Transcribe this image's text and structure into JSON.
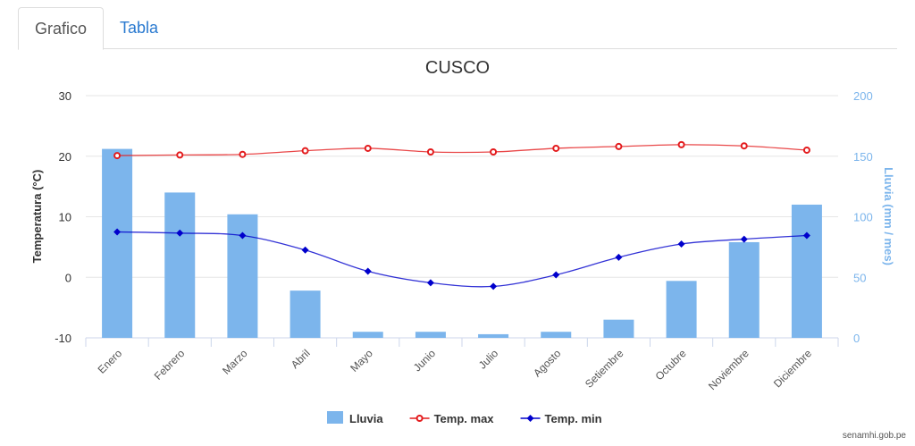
{
  "tabs": [
    {
      "label": "Grafico",
      "active": true
    },
    {
      "label": "Tabla",
      "active": false
    }
  ],
  "credit": "senamhi.gob.pe",
  "chart_data": {
    "type": "bar+line",
    "title": "CUSCO",
    "categories": [
      "Enero",
      "Febrero",
      "Marzo",
      "Abril",
      "Mayo",
      "Junio",
      "Julio",
      "Agosto",
      "Setiembre",
      "Octubre",
      "Noviembre",
      "Diciembre"
    ],
    "y_left": {
      "label": "Temperatura (°C)",
      "range": [
        -10,
        30
      ],
      "ticks": [
        -10,
        0,
        10,
        20,
        30
      ]
    },
    "y_right": {
      "label": "Lluvia (mm / mes)",
      "range": [
        0,
        200
      ],
      "ticks": [
        0,
        50,
        100,
        150,
        200
      ],
      "color": "#7cb5ec"
    },
    "grid": true,
    "legend_position": "bottom",
    "series": [
      {
        "name": "Lluvia",
        "type": "bar",
        "axis": "right",
        "color": "#7cb5ec",
        "values": [
          156,
          120,
          102,
          39,
          5,
          5,
          3,
          5,
          15,
          47,
          79,
          110
        ]
      },
      {
        "name": "Temp. max",
        "type": "line",
        "axis": "left",
        "color": "#e31a1c",
        "marker": "circle",
        "values": [
          20.1,
          20.2,
          20.3,
          20.9,
          21.3,
          20.7,
          20.7,
          21.3,
          21.6,
          21.9,
          21.7,
          21.0
        ]
      },
      {
        "name": "Temp. min",
        "type": "line",
        "axis": "left",
        "color": "#0000cc",
        "marker": "diamond",
        "values": [
          7.5,
          7.3,
          6.9,
          4.5,
          1.0,
          -0.9,
          -1.5,
          0.4,
          3.3,
          5.5,
          6.3,
          6.9
        ]
      }
    ]
  }
}
